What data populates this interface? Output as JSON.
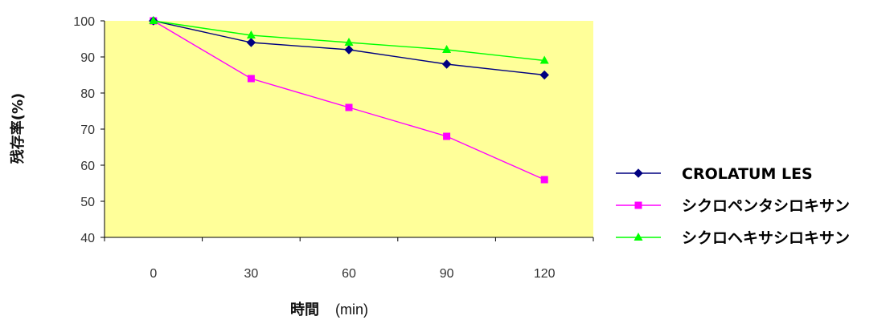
{
  "chart_data": {
    "type": "line",
    "x": [
      0,
      30,
      60,
      90,
      120
    ],
    "categories": [
      "0",
      "30",
      "60",
      "90",
      "120"
    ],
    "ylim": [
      40,
      100
    ],
    "yticks": [
      40,
      50,
      60,
      70,
      80,
      90,
      100
    ],
    "ylabel": "残存率(%)",
    "xlabel": "時間",
    "xunit": "(min)",
    "plot_background": "#FFFF99",
    "grid": false,
    "legend_position": "right",
    "series": [
      {
        "name": "CROLATUM LES",
        "color": "#000080",
        "marker": "diamond",
        "values": [
          100,
          94,
          92,
          88,
          85
        ]
      },
      {
        "name": "シクロペンタシロキサン",
        "color": "#FF00FF",
        "marker": "square",
        "values": [
          100,
          84,
          76,
          68,
          56
        ]
      },
      {
        "name": "シクロヘキサシロキサン",
        "color": "#00FF00",
        "marker": "triangle",
        "values": [
          100,
          96,
          94,
          92,
          89
        ]
      }
    ]
  }
}
